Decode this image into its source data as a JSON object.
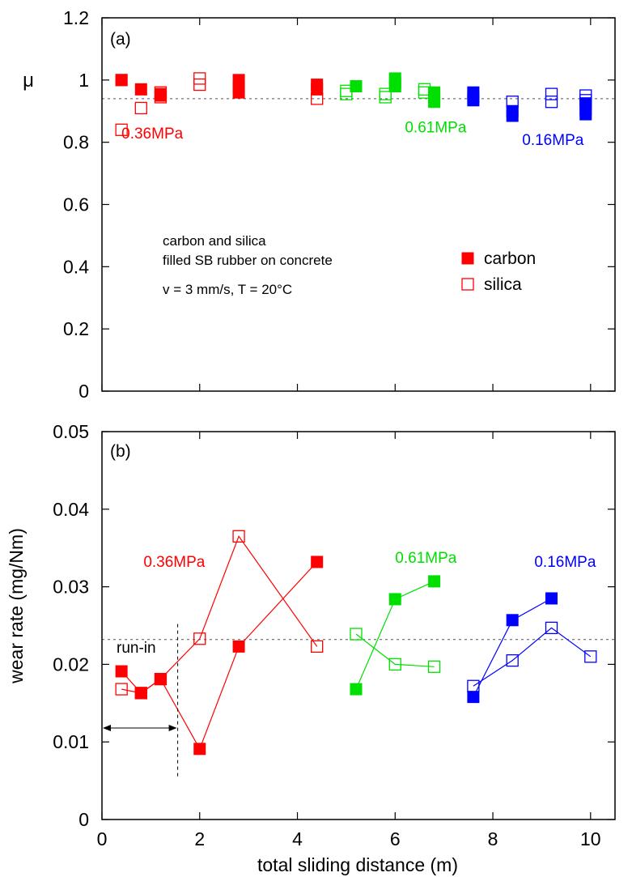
{
  "figure": {
    "xlabel": "total sliding distance  (m)",
    "x_ticks": [
      "0",
      "2",
      "4",
      "6",
      "8",
      "10"
    ],
    "xlim": [
      0,
      10.5
    ]
  },
  "colors": {
    "red": "#ff0000",
    "green": "#00e000",
    "blue": "#0000ff",
    "axis": "#000000",
    "reference_line": "#555555"
  },
  "chart_data": [
    {
      "panel": "(a)",
      "type": "scatter",
      "ylabel": "μ",
      "ylim": [
        0,
        1.2
      ],
      "y_ticks": [
        "0",
        "0.2",
        "0.4",
        "0.6",
        "0.8",
        "1",
        "1.2"
      ],
      "reference_line_y": 0.94,
      "note_lines": [
        "carbon and silica",
        "filled SB rubber on concrete",
        "v = 3 mm/s, T = 20°C"
      ],
      "legend": {
        "position": "right",
        "items": [
          {
            "label": "carbon",
            "marker": "filled"
          },
          {
            "label": "silica",
            "marker": "open"
          }
        ]
      },
      "group_labels": [
        {
          "text": "0.36MPa",
          "color": "red",
          "x": 0.4,
          "y": 0.83
        },
        {
          "text": "0.61MPa",
          "color": "green",
          "x": 6.2,
          "y": 0.85
        },
        {
          "text": "0.16MPa",
          "color": "blue",
          "x": 8.6,
          "y": 0.81
        }
      ],
      "series": [
        {
          "name": "carbon",
          "pressure": "0.36MPa",
          "color": "red",
          "marker": "filled",
          "x": [
            0.4,
            0.4,
            0.8,
            1.2,
            1.2,
            2.8,
            2.8,
            2.8,
            4.4,
            4.4
          ],
          "y": [
            1.0,
            1.0,
            0.97,
            0.95,
            0.955,
            1.0,
            0.975,
            0.96,
            0.985,
            0.97
          ]
        },
        {
          "name": "silica",
          "pressure": "0.36MPa",
          "color": "red",
          "marker": "open",
          "x": [
            0.4,
            0.8,
            1.2,
            1.2,
            2.0,
            2.0,
            4.4
          ],
          "y": [
            0.84,
            0.91,
            0.96,
            0.945,
            1.005,
            0.985,
            0.94
          ]
        },
        {
          "name": "carbon",
          "pressure": "0.61MPa",
          "color": "green",
          "marker": "filled",
          "x": [
            5.2,
            6.0,
            6.0,
            6.0,
            6.8,
            6.8,
            6.8
          ],
          "y": [
            0.98,
            1.005,
            0.99,
            0.98,
            0.96,
            0.945,
            0.93
          ]
        },
        {
          "name": "silica",
          "pressure": "0.61MPa",
          "color": "green",
          "marker": "open",
          "x": [
            5.0,
            5.0,
            5.8,
            5.8,
            6.6,
            6.6
          ],
          "y": [
            0.965,
            0.955,
            0.955,
            0.945,
            0.97,
            0.96
          ]
        },
        {
          "name": "carbon",
          "pressure": "0.16MPa",
          "color": "blue",
          "marker": "filled",
          "x": [
            7.6,
            7.6,
            7.6,
            8.4,
            8.4,
            9.9,
            9.9,
            9.9
          ],
          "y": [
            0.96,
            0.945,
            0.935,
            0.9,
            0.885,
            0.925,
            0.905,
            0.89
          ]
        },
        {
          "name": "silica",
          "pressure": "0.16MPa",
          "color": "blue",
          "marker": "open",
          "x": [
            8.4,
            9.2,
            9.2,
            9.9,
            9.9
          ],
          "y": [
            0.93,
            0.955,
            0.93,
            0.95,
            0.935
          ]
        }
      ]
    },
    {
      "panel": "(b)",
      "type": "line",
      "ylabel": "wear rate  (mg/Nm)",
      "ylim": [
        0,
        0.05
      ],
      "y_ticks": [
        "0",
        "0.01",
        "0.02",
        "0.03",
        "0.04",
        "0.05"
      ],
      "reference_line_y": 0.0232,
      "run_in": {
        "label": "run-in",
        "x_end": 1.55,
        "arrow_y": 0.0118
      },
      "group_labels": [
        {
          "text": "0.36MPa",
          "color": "red",
          "x": 0.85,
          "y": 0.0333
        },
        {
          "text": "0.61MPa",
          "color": "green",
          "x": 6.0,
          "y": 0.0338
        },
        {
          "text": "0.16MPa",
          "color": "blue",
          "x": 8.85,
          "y": 0.0333
        }
      ],
      "series": [
        {
          "name": "carbon",
          "pressure": "0.36MPa",
          "color": "red",
          "marker": "filled",
          "x": [
            0.4,
            0.8,
            1.2,
            2.0,
            2.8,
            4.4
          ],
          "y": [
            0.0191,
            0.0163,
            0.0181,
            0.0091,
            0.0223,
            0.0332
          ]
        },
        {
          "name": "silica",
          "pressure": "0.36MPa",
          "color": "red",
          "marker": "open",
          "x": [
            0.4,
            0.8,
            1.2,
            2.0,
            2.8,
            4.4
          ],
          "y": [
            0.0168,
            0.0163,
            0.0181,
            0.0233,
            0.0365,
            0.0223
          ]
        },
        {
          "name": "carbon",
          "pressure": "0.61MPa",
          "color": "green",
          "marker": "filled",
          "x": [
            5.2,
            6.0,
            6.8
          ],
          "y": [
            0.0168,
            0.0284,
            0.0307
          ]
        },
        {
          "name": "silica",
          "pressure": "0.61MPa",
          "color": "green",
          "marker": "open",
          "x": [
            5.2,
            6.0,
            6.8
          ],
          "y": [
            0.0239,
            0.02,
            0.0197
          ]
        },
        {
          "name": "carbon",
          "pressure": "0.16MPa",
          "color": "blue",
          "marker": "filled",
          "x": [
            7.6,
            8.4,
            9.2
          ],
          "y": [
            0.0158,
            0.0257,
            0.0285
          ]
        },
        {
          "name": "silica",
          "pressure": "0.16MPa",
          "color": "blue",
          "marker": "open",
          "x": [
            7.6,
            8.4,
            9.2,
            10.0
          ],
          "y": [
            0.0172,
            0.0205,
            0.0247,
            0.021
          ]
        }
      ]
    }
  ]
}
